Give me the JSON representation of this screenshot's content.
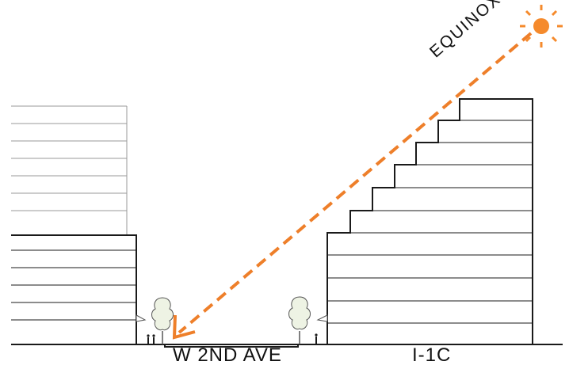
{
  "labels": {
    "sun_path": "EQUINOX",
    "street": "W 2ND AVE",
    "zone": "I-1C"
  },
  "colors": {
    "sun": "#f58a2c",
    "sun_path": "#ee7f2a",
    "lines": "#1a1a1a",
    "light_lines": "#999999",
    "tree_fill": "#eef3e4"
  },
  "icons": {
    "sun": "sun-icon",
    "tree": "tree-icon",
    "pedestrian": "pedestrian-icon",
    "awning": "awning-icon"
  }
}
